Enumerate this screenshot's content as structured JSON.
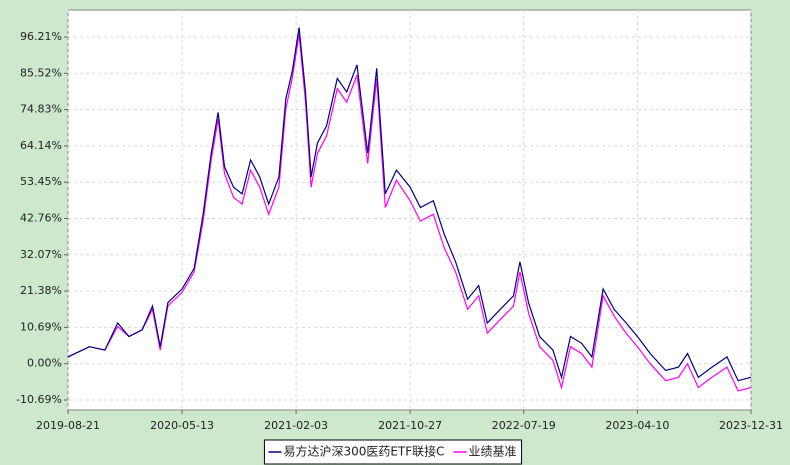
{
  "chart_data": {
    "type": "line",
    "x": [
      "2019-08-21",
      "2019-10-10",
      "2019-11-15",
      "2019-12-15",
      "2020-01-10",
      "2020-02-10",
      "2020-03-05",
      "2020-03-23",
      "2020-04-10",
      "2020-05-13",
      "2020-06-10",
      "2020-07-01",
      "2020-07-20",
      "2020-08-05",
      "2020-08-20",
      "2020-09-10",
      "2020-09-30",
      "2020-10-20",
      "2020-11-10",
      "2020-12-01",
      "2020-12-25",
      "2021-01-10",
      "2021-01-25",
      "2021-02-10",
      "2021-02-25",
      "2021-03-10",
      "2021-03-25",
      "2021-04-15",
      "2021-05-10",
      "2021-06-01",
      "2021-06-25",
      "2021-07-20",
      "2021-08-10",
      "2021-08-30",
      "2021-09-25",
      "2021-10-27",
      "2021-11-20",
      "2021-12-20",
      "2022-01-15",
      "2022-02-10",
      "2022-03-10",
      "2022-04-05",
      "2022-04-25",
      "2022-05-25",
      "2022-06-25",
      "2022-07-10",
      "2022-07-30",
      "2022-08-25",
      "2022-09-25",
      "2022-10-15",
      "2022-11-05",
      "2022-12-01",
      "2022-12-25",
      "2023-01-20",
      "2023-02-15",
      "2023-03-15",
      "2023-04-10",
      "2023-05-10",
      "2023-06-15",
      "2023-07-15",
      "2023-08-05",
      "2023-08-30",
      "2023-10-01",
      "2023-11-05",
      "2023-12-01",
      "2023-12-31"
    ],
    "series": [
      {
        "name": "业绩基准",
        "color": "#ff00ff",
        "values": [
          2,
          5,
          4,
          11,
          8,
          10,
          16,
          4,
          17,
          21,
          27,
          42,
          60,
          72,
          56,
          49,
          47,
          57,
          52,
          44,
          52,
          75,
          84,
          97,
          77,
          52,
          62,
          67,
          81,
          77,
          85,
          59,
          84,
          46,
          54,
          48,
          42,
          44,
          34,
          27,
          16,
          20,
          9,
          13,
          17,
          27,
          15,
          5,
          1,
          -7,
          5,
          3,
          -1,
          20,
          14,
          9,
          5,
          0,
          -5,
          -4,
          0,
          -7,
          -4,
          -1,
          -8,
          -7
        ]
      },
      {
        "name": "易方达沪深300医药ETF联接C",
        "color": "#000080",
        "values": [
          2,
          5,
          4,
          12,
          8,
          10,
          17,
          5,
          18,
          22,
          28,
          44,
          62,
          74,
          58,
          52,
          50,
          60,
          55,
          47,
          55,
          78,
          86,
          99,
          80,
          55,
          65,
          70,
          84,
          80,
          88,
          62,
          87,
          50,
          57,
          52,
          46,
          48,
          38,
          30,
          19,
          23,
          12,
          16,
          20,
          30,
          18,
          8,
          4,
          -4,
          8,
          6,
          2,
          22,
          16,
          12,
          8,
          3,
          -2,
          -1,
          3,
          -4,
          -1,
          2,
          -5,
          -4
        ]
      }
    ],
    "xlim": [
      "2019-08-21",
      "2023-12-31"
    ],
    "xticks": [
      "2019-08-21",
      "2020-05-13",
      "2021-02-03",
      "2021-10-27",
      "2022-07-19",
      "2023-04-10",
      "2023-12-31"
    ],
    "ylim": [
      -13.63,
      104.16
    ],
    "yticks": [
      {
        "value": -10.69,
        "label": "-10.69%"
      },
      {
        "value": 0,
        "label": "0.00%"
      },
      {
        "value": 10.69,
        "label": "10.69%"
      },
      {
        "value": 21.38,
        "label": "21.38%"
      },
      {
        "value": 32.07,
        "label": "32.07%"
      },
      {
        "value": 42.76,
        "label": "42.76%"
      },
      {
        "value": 53.45,
        "label": "53.45%"
      },
      {
        "value": 64.14,
        "label": "64.14%"
      },
      {
        "value": 74.83,
        "label": "74.83%"
      },
      {
        "value": 85.52,
        "label": "85.52%"
      },
      {
        "value": 96.21,
        "label": "96.21%"
      }
    ],
    "grid": true
  }
}
